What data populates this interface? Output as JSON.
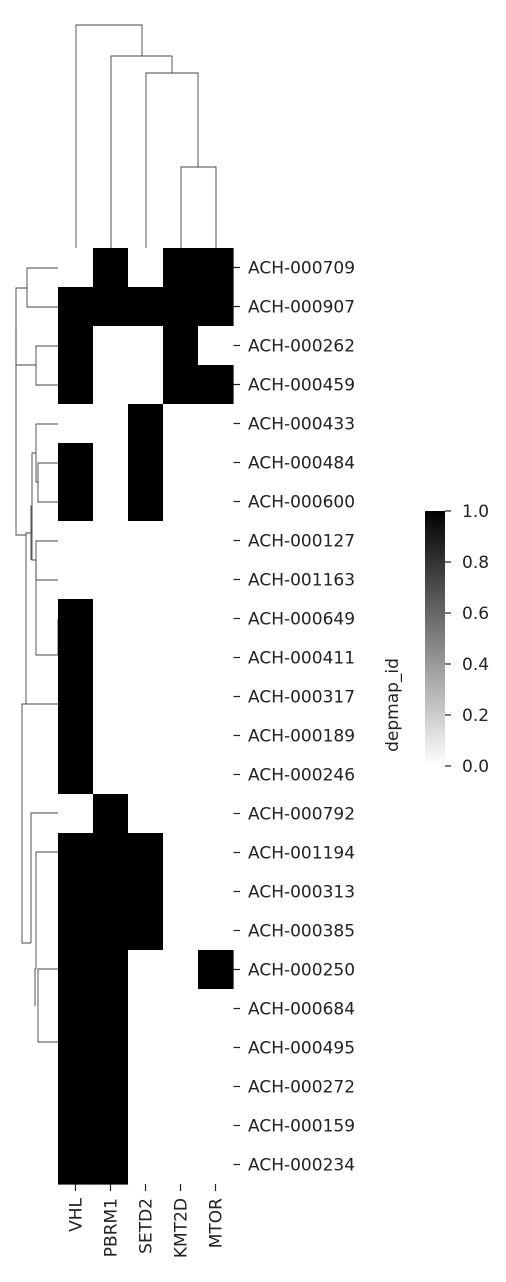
{
  "chart_data": {
    "type": "heatmap",
    "columns": [
      "VHL",
      "PBRM1",
      "SETD2",
      "KMT2D",
      "MTOR"
    ],
    "rows": [
      "ACH-000709",
      "ACH-000907",
      "ACH-000262",
      "ACH-000459",
      "ACH-000433",
      "ACH-000484",
      "ACH-000600",
      "ACH-000127",
      "ACH-001163",
      "ACH-000649",
      "ACH-000411",
      "ACH-000317",
      "ACH-000189",
      "ACH-000246",
      "ACH-000792",
      "ACH-001194",
      "ACH-000313",
      "ACH-000385",
      "ACH-000250",
      "ACH-000684",
      "ACH-000495",
      "ACH-000272",
      "ACH-000159",
      "ACH-000234"
    ],
    "values": [
      [
        0,
        1,
        0,
        1,
        1
      ],
      [
        1,
        1,
        1,
        1,
        1
      ],
      [
        1,
        0,
        0,
        1,
        0
      ],
      [
        1,
        0,
        0,
        1,
        1
      ],
      [
        0,
        0,
        1,
        0,
        0
      ],
      [
        1,
        0,
        1,
        0,
        0
      ],
      [
        1,
        0,
        1,
        0,
        0
      ],
      [
        0,
        0,
        0,
        0,
        0
      ],
      [
        0,
        0,
        0,
        0,
        0
      ],
      [
        1,
        0,
        0,
        0,
        0
      ],
      [
        1,
        0,
        0,
        0,
        0
      ],
      [
        1,
        0,
        0,
        0,
        0
      ],
      [
        1,
        0,
        0,
        0,
        0
      ],
      [
        1,
        0,
        0,
        0,
        0
      ],
      [
        0,
        1,
        0,
        0,
        0
      ],
      [
        1,
        1,
        1,
        0,
        0
      ],
      [
        1,
        1,
        1,
        0,
        0
      ],
      [
        1,
        1,
        1,
        0,
        0
      ],
      [
        1,
        1,
        0,
        0,
        1
      ],
      [
        1,
        1,
        0,
        0,
        0
      ],
      [
        1,
        1,
        0,
        0,
        0
      ],
      [
        1,
        1,
        0,
        0,
        0
      ],
      [
        1,
        1,
        0,
        0,
        0
      ],
      [
        1,
        1,
        0,
        0,
        0
      ]
    ],
    "colorbar": {
      "label": "depmap_id",
      "range": [
        0.0,
        1.0
      ],
      "ticks": [
        "0.0",
        "0.2",
        "0.4",
        "0.6",
        "0.8",
        "1.0"
      ],
      "low_color": "#ffffff",
      "high_color": "#000000"
    },
    "dendrograms": [
      "columns",
      "rows"
    ]
  }
}
